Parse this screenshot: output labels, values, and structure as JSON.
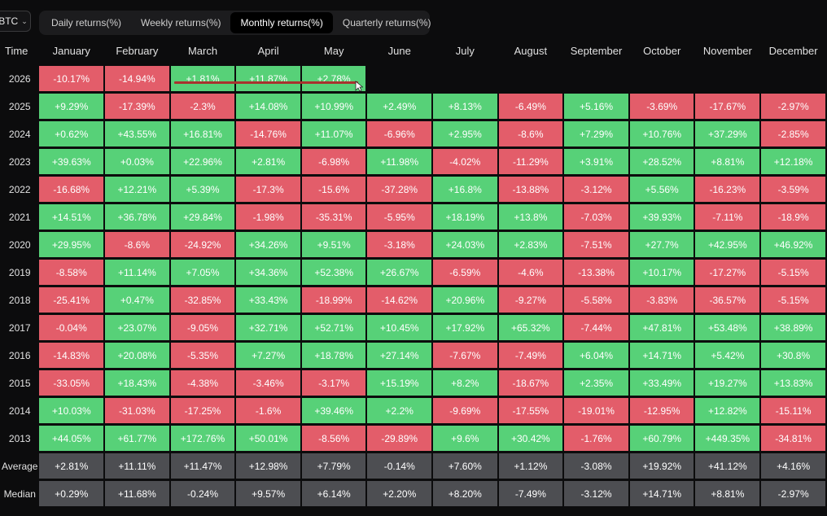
{
  "asset_selector": {
    "label": "BTC",
    "caret": "⌃⌄"
  },
  "tabs": [
    {
      "label": "Daily returns(%)",
      "active": false
    },
    {
      "label": "Weekly returns(%)",
      "active": false
    },
    {
      "label": "Monthly returns(%)",
      "active": true
    },
    {
      "label": "Quarterly returns(%)",
      "active": false
    }
  ],
  "table": {
    "corner_header": "Time",
    "months": [
      "January",
      "February",
      "March",
      "April",
      "May",
      "June",
      "July",
      "August",
      "September",
      "October",
      "November",
      "December"
    ],
    "years": [
      {
        "label": "2026",
        "values": [
          "-10.17%",
          "-14.94%",
          "+1.81%",
          "+11.87%",
          "+2.78%",
          "",
          "",
          "",
          "",
          "",
          "",
          ""
        ]
      },
      {
        "label": "2025",
        "values": [
          "+9.29%",
          "-17.39%",
          "-2.3%",
          "+14.08%",
          "+10.99%",
          "+2.49%",
          "+8.13%",
          "-6.49%",
          "+5.16%",
          "-3.69%",
          "-17.67%",
          "-2.97%"
        ]
      },
      {
        "label": "2024",
        "values": [
          "+0.62%",
          "+43.55%",
          "+16.81%",
          "-14.76%",
          "+11.07%",
          "-6.96%",
          "+2.95%",
          "-8.6%",
          "+7.29%",
          "+10.76%",
          "+37.29%",
          "-2.85%"
        ]
      },
      {
        "label": "2023",
        "values": [
          "+39.63%",
          "+0.03%",
          "+22.96%",
          "+2.81%",
          "-6.98%",
          "+11.98%",
          "-4.02%",
          "-11.29%",
          "+3.91%",
          "+28.52%",
          "+8.81%",
          "+12.18%"
        ]
      },
      {
        "label": "2022",
        "values": [
          "-16.68%",
          "+12.21%",
          "+5.39%",
          "-17.3%",
          "-15.6%",
          "-37.28%",
          "+16.8%",
          "-13.88%",
          "-3.12%",
          "+5.56%",
          "-16.23%",
          "-3.59%"
        ]
      },
      {
        "label": "2021",
        "values": [
          "+14.51%",
          "+36.78%",
          "+29.84%",
          "-1.98%",
          "-35.31%",
          "-5.95%",
          "+18.19%",
          "+13.8%",
          "-7.03%",
          "+39.93%",
          "-7.11%",
          "-18.9%"
        ]
      },
      {
        "label": "2020",
        "values": [
          "+29.95%",
          "-8.6%",
          "-24.92%",
          "+34.26%",
          "+9.51%",
          "-3.18%",
          "+24.03%",
          "+2.83%",
          "-7.51%",
          "+27.7%",
          "+42.95%",
          "+46.92%"
        ]
      },
      {
        "label": "2019",
        "values": [
          "-8.58%",
          "+11.14%",
          "+7.05%",
          "+34.36%",
          "+52.38%",
          "+26.67%",
          "-6.59%",
          "-4.6%",
          "-13.38%",
          "+10.17%",
          "-17.27%",
          "-5.15%"
        ]
      },
      {
        "label": "2018",
        "values": [
          "-25.41%",
          "+0.47%",
          "-32.85%",
          "+33.43%",
          "-18.99%",
          "-14.62%",
          "+20.96%",
          "-9.27%",
          "-5.58%",
          "-3.83%",
          "-36.57%",
          "-5.15%"
        ]
      },
      {
        "label": "2017",
        "values": [
          "-0.04%",
          "+23.07%",
          "-9.05%",
          "+32.71%",
          "+52.71%",
          "+10.45%",
          "+17.92%",
          "+65.32%",
          "-7.44%",
          "+47.81%",
          "+53.48%",
          "+38.89%"
        ]
      },
      {
        "label": "2016",
        "values": [
          "-14.83%",
          "+20.08%",
          "-5.35%",
          "+7.27%",
          "+18.78%",
          "+27.14%",
          "-7.67%",
          "-7.49%",
          "+6.04%",
          "+14.71%",
          "+5.42%",
          "+30.8%"
        ]
      },
      {
        "label": "2015",
        "values": [
          "-33.05%",
          "+18.43%",
          "-4.38%",
          "-3.46%",
          "-3.17%",
          "+15.19%",
          "+8.2%",
          "-18.67%",
          "+2.35%",
          "+33.49%",
          "+19.27%",
          "+13.83%"
        ]
      },
      {
        "label": "2014",
        "values": [
          "+10.03%",
          "-31.03%",
          "-17.25%",
          "-1.6%",
          "+39.46%",
          "+2.2%",
          "-9.69%",
          "-17.55%",
          "-19.01%",
          "-12.95%",
          "+12.82%",
          "-15.11%"
        ]
      },
      {
        "label": "2013",
        "values": [
          "+44.05%",
          "+61.77%",
          "+172.76%",
          "+50.01%",
          "-8.56%",
          "-29.89%",
          "+9.6%",
          "+30.42%",
          "-1.76%",
          "+60.79%",
          "+449.35%",
          "-34.81%"
        ]
      }
    ],
    "stats": [
      {
        "label": "Average",
        "values": [
          "+2.81%",
          "+11.11%",
          "+11.47%",
          "+12.98%",
          "+7.79%",
          "-0.14%",
          "+7.60%",
          "+1.12%",
          "-3.08%",
          "+19.92%",
          "+41.12%",
          "+4.16%"
        ]
      },
      {
        "label": "Median",
        "values": [
          "+0.29%",
          "+11.68%",
          "-0.24%",
          "+9.57%",
          "+6.14%",
          "+2.20%",
          "+8.20%",
          "-7.49%",
          "-3.12%",
          "+14.71%",
          "+8.81%",
          "-2.97%"
        ]
      }
    ]
  },
  "colors": {
    "positive": "#57d178",
    "negative": "#e35d6a",
    "stat": "#4d4e52",
    "annotation": "#a8322e"
  },
  "icons": {
    "cursor": "cursor-icon"
  }
}
